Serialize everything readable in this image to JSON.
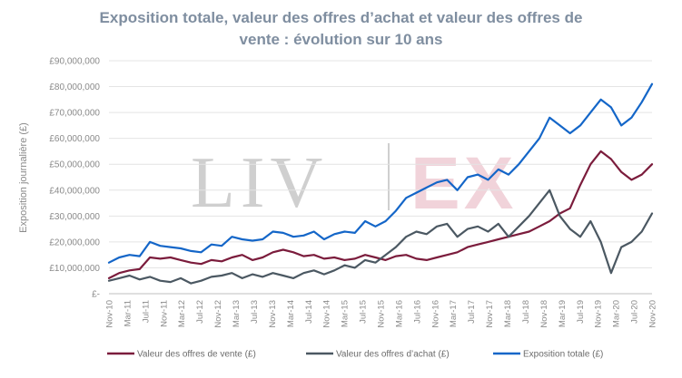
{
  "chart_data": {
    "type": "line",
    "title_line1": "Exposition totale, valeur des offres d’achat et valeur des offres de",
    "title_line2": "vente : évolution sur 10 ans",
    "ylabel": "Exposition journalière (£)",
    "ylim": [
      0,
      90000000
    ],
    "y_ticks": [
      {
        "value": 90000000,
        "label": "£90,000,000"
      },
      {
        "value": 80000000,
        "label": "£80,000,000"
      },
      {
        "value": 70000000,
        "label": "£70,000,000"
      },
      {
        "value": 60000000,
        "label": "£60,000,000"
      },
      {
        "value": 50000000,
        "label": "£50,000,000"
      },
      {
        "value": 40000000,
        "label": "£40,000,000"
      },
      {
        "value": 30000000,
        "label": "£30,000,000"
      },
      {
        "value": 20000000,
        "label": "£20,000,000"
      },
      {
        "value": 10000000,
        "label": "£10,000,000"
      },
      {
        "value": 0,
        "label": "£-"
      }
    ],
    "x_labels": [
      "Nov-10",
      "Mar-11",
      "Jul-11",
      "Nov-11",
      "Mar-12",
      "Jul-12",
      "Nov-12",
      "Mar-13",
      "Jul-13",
      "Nov-13",
      "Mar-14",
      "Jul-14",
      "Nov-14",
      "Mar-15",
      "Jul-15",
      "Nov-15",
      "Mar-16",
      "Jul-16",
      "Nov-16",
      "Mar-17",
      "Jul-17",
      "Nov-17",
      "Mar-18",
      "Jul-18",
      "Nov-18",
      "Mar-19",
      "Jul-19",
      "Nov-19",
      "Mar-20",
      "Jul-20",
      "Nov-20"
    ],
    "grid": true,
    "legend_position": "bottom",
    "watermark_left": "LIV",
    "watermark_right": "EX",
    "series": [
      {
        "name": "Valeur des offres de vente (£)",
        "color": "#7b1c3c",
        "values": [
          6000000,
          8000000,
          9000000,
          9500000,
          14000000,
          13500000,
          14000000,
          13000000,
          12000000,
          11500000,
          13000000,
          12500000,
          14000000,
          15000000,
          13000000,
          14000000,
          16000000,
          17000000,
          16000000,
          14500000,
          15000000,
          13500000,
          14000000,
          13000000,
          13500000,
          15000000,
          14000000,
          13000000,
          14500000,
          15000000,
          13500000,
          13000000,
          14000000,
          15000000,
          16000000,
          18000000,
          19000000,
          20000000,
          21000000,
          22000000,
          23000000,
          24000000,
          26000000,
          28000000,
          31000000,
          33000000,
          42000000,
          50000000,
          55000000,
          52000000,
          47000000,
          44000000,
          46000000,
          50000000
        ]
      },
      {
        "name": "Valeur des offres d’achat (£)",
        "color": "#4b5862",
        "values": [
          5000000,
          6000000,
          7000000,
          5500000,
          6500000,
          5000000,
          4500000,
          6000000,
          4000000,
          5000000,
          6500000,
          7000000,
          8000000,
          6000000,
          7500000,
          6500000,
          8000000,
          7000000,
          6000000,
          8000000,
          9000000,
          7500000,
          9000000,
          11000000,
          10000000,
          13000000,
          12000000,
          15000000,
          18000000,
          22000000,
          24000000,
          23000000,
          26000000,
          27000000,
          22000000,
          25000000,
          26000000,
          24000000,
          27000000,
          22000000,
          26000000,
          30000000,
          35000000,
          40000000,
          30000000,
          25000000,
          22000000,
          28000000,
          20000000,
          8000000,
          18000000,
          20000000,
          24000000,
          31000000
        ]
      },
      {
        "name": "Exposition totale (£)",
        "color": "#1466c8",
        "values": [
          12000000,
          14000000,
          15000000,
          14500000,
          20000000,
          18500000,
          18000000,
          17500000,
          16500000,
          16000000,
          19000000,
          18500000,
          22000000,
          21000000,
          20500000,
          21000000,
          24000000,
          23500000,
          22000000,
          22500000,
          24000000,
          21000000,
          23000000,
          24000000,
          23500000,
          28000000,
          26000000,
          28000000,
          32000000,
          37000000,
          39000000,
          41000000,
          43000000,
          44000000,
          40000000,
          45000000,
          46000000,
          44000000,
          48000000,
          46000000,
          50000000,
          55000000,
          60000000,
          68000000,
          65000000,
          62000000,
          65000000,
          70000000,
          75000000,
          72000000,
          65000000,
          68000000,
          74000000,
          81000000
        ]
      }
    ]
  }
}
